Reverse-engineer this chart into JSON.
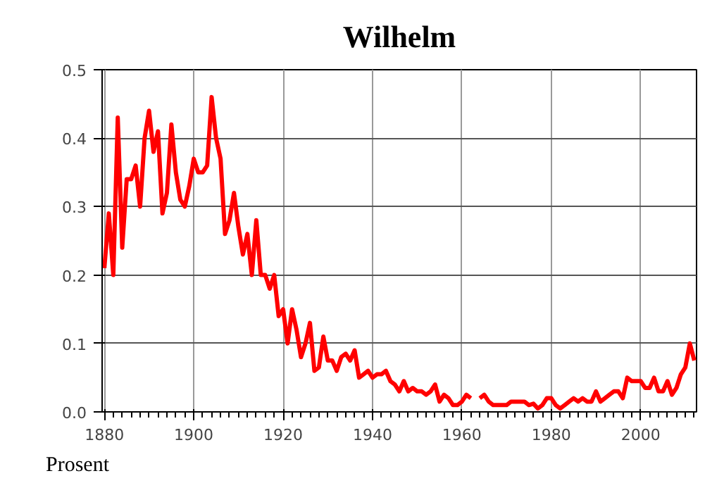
{
  "chart_data": {
    "type": "line",
    "title": "Wilhelm",
    "ylabel": "Prosent",
    "x": [
      1880,
      1881,
      1882,
      1883,
      1884,
      1885,
      1886,
      1887,
      1888,
      1889,
      1890,
      1891,
      1892,
      1893,
      1894,
      1895,
      1896,
      1897,
      1898,
      1899,
      1900,
      1901,
      1902,
      1903,
      1904,
      1905,
      1906,
      1907,
      1908,
      1909,
      1910,
      1911,
      1912,
      1913,
      1914,
      1915,
      1916,
      1917,
      1918,
      1919,
      1920,
      1921,
      1922,
      1923,
      1924,
      1925,
      1926,
      1927,
      1928,
      1929,
      1930,
      1931,
      1932,
      1933,
      1934,
      1935,
      1936,
      1937,
      1938,
      1939,
      1940,
      1941,
      1942,
      1943,
      1944,
      1945,
      1946,
      1947,
      1948,
      1949,
      1950,
      1951,
      1952,
      1953,
      1954,
      1955,
      1956,
      1957,
      1958,
      1959,
      1960,
      1961,
      1962,
      1963,
      1964,
      1965,
      1966,
      1967,
      1968,
      1969,
      1970,
      1971,
      1972,
      1973,
      1974,
      1975,
      1976,
      1977,
      1978,
      1979,
      1980,
      1981,
      1982,
      1983,
      1984,
      1985,
      1986,
      1987,
      1988,
      1989,
      1990,
      1991,
      1992,
      1993,
      1994,
      1995,
      1996,
      1997,
      1998,
      1999,
      2000,
      2001,
      2002,
      2003,
      2004,
      2005,
      2006,
      2007,
      2008,
      2009,
      2010,
      2011,
      2012
    ],
    "series": [
      {
        "color": "#ff0000",
        "values": [
          0.21,
          0.29,
          0.2,
          0.43,
          0.24,
          0.34,
          0.34,
          0.36,
          0.3,
          0.4,
          0.44,
          0.38,
          0.41,
          0.29,
          0.32,
          0.42,
          0.35,
          0.31,
          0.3,
          0.33,
          0.37,
          0.35,
          0.35,
          0.36,
          0.46,
          0.4,
          0.37,
          0.26,
          0.28,
          0.32,
          0.27,
          0.23,
          0.26,
          0.2,
          0.28,
          0.2,
          0.2,
          0.18,
          0.2,
          0.14,
          0.15,
          0.1,
          0.15,
          0.12,
          0.08,
          0.1,
          0.13,
          0.06,
          0.065,
          0.11,
          0.075,
          0.075,
          0.06,
          0.08,
          0.085,
          0.075,
          0.09,
          0.05,
          0.055,
          0.06,
          0.05,
          0.055,
          0.055,
          0.06,
          0.045,
          0.04,
          0.03,
          0.045,
          0.03,
          0.035,
          0.03,
          0.03,
          0.025,
          0.03,
          0.04,
          0.015,
          0.025,
          0.02,
          0.01,
          0.01,
          0.015,
          0.025,
          0.02,
          null,
          0.02,
          0.025,
          0.015,
          0.01,
          0.01,
          0.01,
          0.01,
          0.015,
          0.015,
          0.015,
          0.015,
          0.01,
          0.012,
          0.005,
          0.01,
          0.02,
          0.02,
          0.01,
          0.005,
          0.01,
          0.015,
          0.02,
          0.015,
          0.02,
          0.015,
          0.015,
          0.03,
          0.015,
          0.02,
          0.025,
          0.03,
          0.03,
          0.02,
          0.05,
          0.045,
          0.045,
          0.045,
          0.035,
          0.035,
          0.05,
          0.03,
          0.03,
          0.045,
          0.025,
          0.035,
          0.055,
          0.065,
          0.1,
          0.075
        ]
      }
    ],
    "xlim": [
      1879.5,
      2012.5
    ],
    "xticks": [
      1880,
      1900,
      1920,
      1940,
      1960,
      1980,
      2000
    ],
    "ylim": [
      0,
      0.5
    ],
    "yticks": [
      {
        "value": 0,
        "label": "0.0"
      },
      {
        "value": 0.1,
        "label": "0.1"
      },
      {
        "value": 0.2,
        "label": "0.2"
      },
      {
        "value": 0.3,
        "label": "0.3"
      },
      {
        "value": 0.4,
        "label": "0.4"
      },
      {
        "value": 0.5,
        "label": "0.5"
      }
    ],
    "grid": true
  }
}
